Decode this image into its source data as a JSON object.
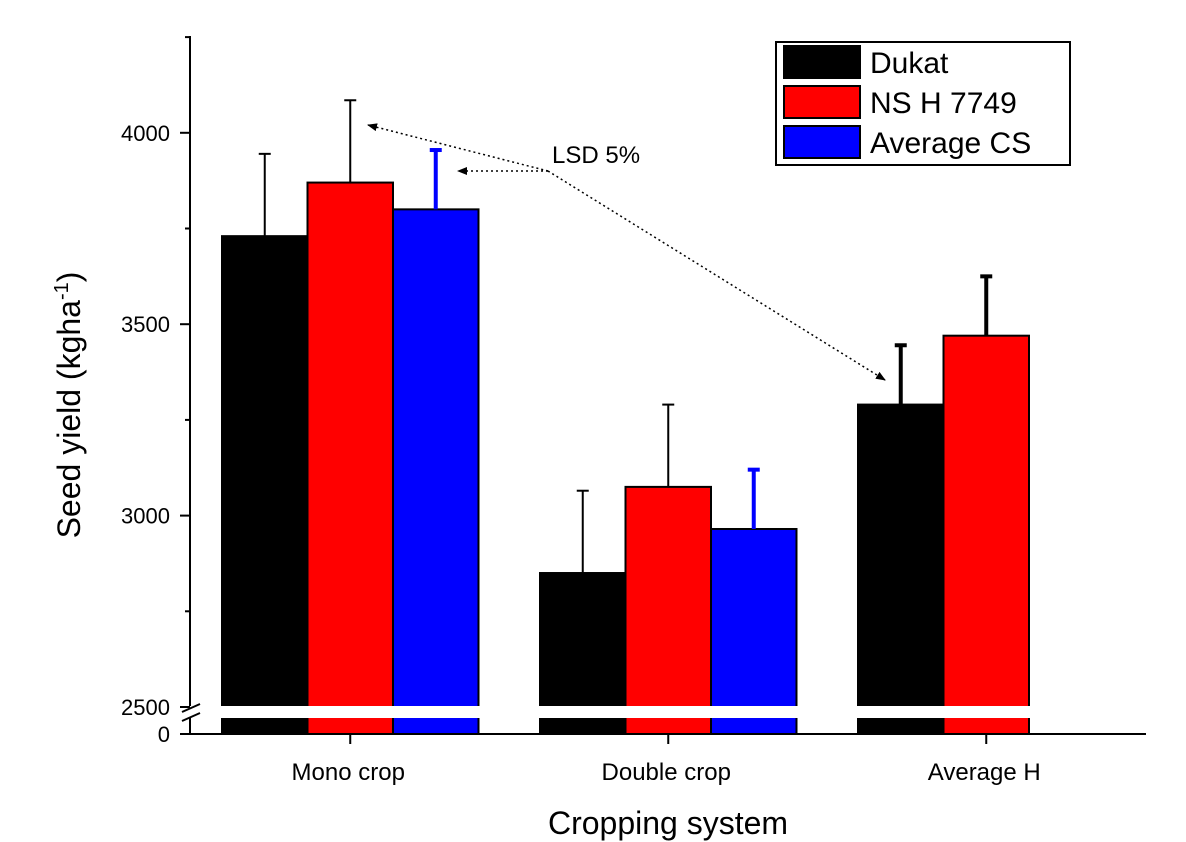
{
  "chart_data": {
    "type": "bar",
    "xlabel": "Cropping system",
    "ylabel": "Seed yield (kgha",
    "ylabel_sup": "-1",
    "ylabel_close": ")",
    "categories": [
      "Mono crop",
      "Double crop",
      "Average H"
    ],
    "y_break": {
      "lower_tick": "0",
      "upper_start": 2500
    },
    "ylim": [
      2500,
      4250
    ],
    "yticks": [
      2500,
      3000,
      3500,
      4000
    ],
    "grid": false,
    "legend_position": "top-right",
    "series": [
      {
        "name": "Dukat",
        "color": "#000000",
        "values": [
          3730,
          2850,
          3290
        ],
        "errors": [
          215,
          215,
          155
        ]
      },
      {
        "name": "NS H 7749",
        "color": "#ff0000",
        "values": [
          3870,
          3075,
          3470
        ],
        "errors": [
          215,
          215,
          155
        ]
      },
      {
        "name": "Average CS",
        "color": "#0000ff",
        "values": [
          3800,
          2965,
          null
        ],
        "errors": [
          155,
          155,
          null
        ]
      }
    ],
    "annotation": {
      "text": "LSD 5%"
    }
  }
}
